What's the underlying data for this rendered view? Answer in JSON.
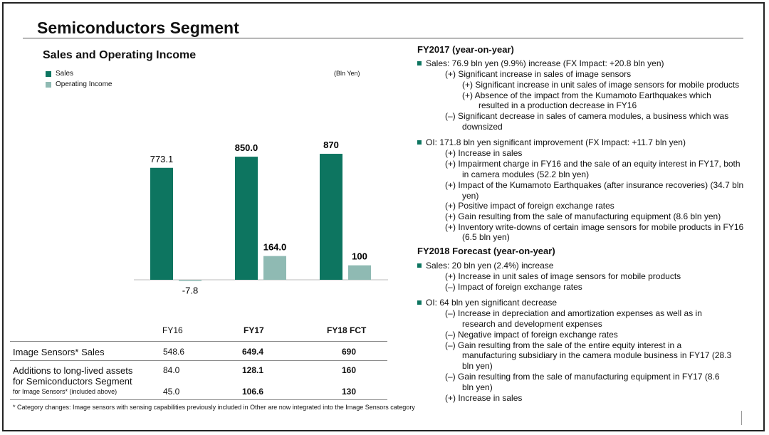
{
  "page_title": "Semiconductors Segment",
  "colors": {
    "sales": "#0d7560",
    "oi": "#8fbab3"
  },
  "chart_data": {
    "type": "bar",
    "title": "Sales and Operating Income",
    "unit": "(Bln Yen)",
    "categories": [
      "FY16",
      "FY17",
      "FY18 FCT"
    ],
    "series": [
      {
        "name": "Sales",
        "values": [
          773.1,
          850.0,
          870
        ],
        "labels": [
          "773.1",
          "850.0",
          "870"
        ]
      },
      {
        "name": "Operating Income",
        "values": [
          -7.8,
          164.0,
          100
        ],
        "labels": [
          "-7.8",
          "164.0",
          "100"
        ]
      }
    ]
  },
  "table": {
    "headers": [
      "FY16",
      "FY17",
      "FY18 FCT"
    ],
    "row1_label": "Image Sensors* Sales",
    "row1_values": [
      "548.6",
      "649.4",
      "690"
    ],
    "row2_label_line1": "Additions to long-lived assets",
    "row2_label_line2": "for Semiconductors Segment",
    "row2_values": [
      "84.0",
      "128.1",
      "160"
    ],
    "row3_label": "for Image Sensors* (included above)",
    "row3_values": [
      "45.0",
      "106.6",
      "130"
    ]
  },
  "footnote": "* Category changes: Image sensors with sensing capabilities previously included in Other are now integrated into the Image Sensors category",
  "fy2017": {
    "heading": "FY2017 (year-on-year)",
    "sales_head": "Sales: 76.9 bln yen (9.9%) increase (FX Impact: +20.8 bln yen)",
    "sales_lines": [
      "(+) Significant increase in sales of image sensors",
      "(+) Significant increase in unit sales of image sensors for mobile products",
      "(+) Absence of the impact from the Kumamoto Earthquakes which",
      "resulted in a production decrease in FY16",
      "(–) Significant decrease in sales of camera modules, a business which was",
      "downsized"
    ],
    "oi_head": "OI: 171.8 bln yen significant improvement  (FX Impact: +11.7 bln yen)",
    "oi_lines": [
      "(+) Increase in sales",
      "(+) Impairment charge in FY16 and the sale of an equity interest in FY17, both",
      "in camera modules (52.2 bln yen)",
      "(+) Impact of the Kumamoto Earthquakes (after insurance recoveries) (34.7 bln",
      "yen)",
      "(+) Positive impact of foreign exchange rates",
      "(+) Gain resulting from the sale of manufacturing equipment (8.6 bln yen)",
      "(+) Inventory write-downs of certain image sensors for mobile products in FY16",
      "(6.5 bln yen)"
    ]
  },
  "fy2018": {
    "heading": "FY2018 Forecast (year-on-year)",
    "sales_head": "Sales: 20 bln yen (2.4%) increase",
    "sales_lines": [
      "(+) Increase in unit sales of image sensors for mobile products",
      "(–) Impact of foreign exchange rates"
    ],
    "oi_head": "OI: 64 bln yen significant decrease",
    "oi_lines": [
      "(–) Increase in depreciation and amortization expenses as well as in",
      "research and development expenses",
      "(–) Negative impact of foreign exchange rates",
      "(–) Gain resulting from the sale of the entire equity interest in a",
      "manufacturing subsidiary in the camera module business in FY17 (28.3",
      "bln yen)",
      "(–) Gain resulting from the sale of manufacturing equipment in FY17 (8.6",
      "bln yen)",
      "(+) Increase in sales"
    ]
  }
}
